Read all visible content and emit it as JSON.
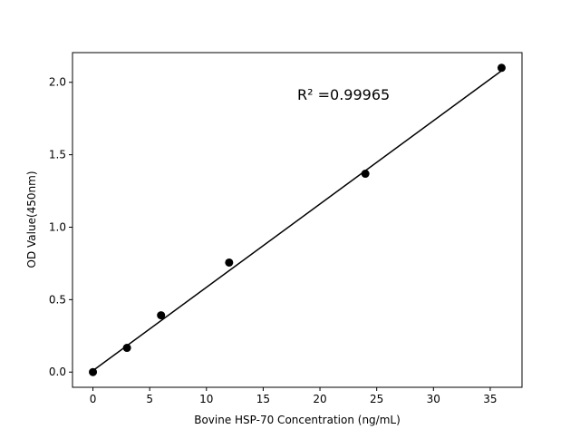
{
  "chart_data": {
    "type": "scatter",
    "title": "",
    "xlabel": "Bovine HSP-70 Concentration (ng/mL)",
    "ylabel": "OD Value(450nm)",
    "xlim": [
      -1.8,
      37.8
    ],
    "ylim": [
      -0.105,
      2.205
    ],
    "xticks": [
      0,
      5,
      10,
      15,
      20,
      25,
      30,
      35
    ],
    "xtick_labels": [
      "0",
      "5",
      "10",
      "15",
      "20",
      "25",
      "30",
      "35"
    ],
    "yticks": [
      0.0,
      0.5,
      1.0,
      1.5,
      2.0
    ],
    "ytick_labels": [
      "0.0",
      "0.5",
      "1.0",
      "1.5",
      "2.0"
    ],
    "grid": false,
    "points": {
      "x": [
        0,
        3,
        6,
        12,
        24,
        36
      ],
      "y": [
        0.0,
        0.167,
        0.392,
        0.756,
        1.369,
        2.1
      ],
      "color": "#000000"
    },
    "fit_line": {
      "x": [
        0,
        36
      ],
      "y": [
        0.01,
        2.08
      ],
      "color": "#000000"
    },
    "annotation": {
      "text": "R² =0.99965",
      "x": 18,
      "y": 1.88
    }
  }
}
